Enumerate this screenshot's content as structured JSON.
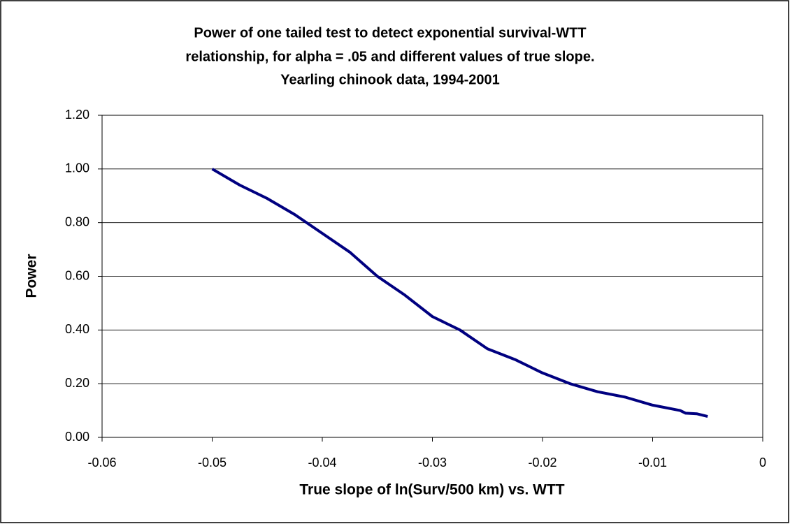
{
  "chart_data": {
    "type": "line",
    "title": [
      "Power of one tailed test to detect exponential survival-WTT",
      "relationship, for alpha = .05 and different values of true slope.",
      "Yearling chinook data, 1994-2001"
    ],
    "xlabel": "True slope of ln(Surv/500 km) vs. WTT",
    "ylabel": "Power",
    "x": [
      -0.05,
      -0.0475,
      -0.045,
      -0.0425,
      -0.04,
      -0.0375,
      -0.035,
      -0.0325,
      -0.03,
      -0.0275,
      -0.025,
      -0.0225,
      -0.02,
      -0.0175,
      -0.015,
      -0.0125,
      -0.01,
      -0.0075,
      -0.007,
      -0.006,
      -0.005
    ],
    "series": [
      {
        "color": "#000080",
        "values": [
          1.0,
          0.94,
          0.89,
          0.83,
          0.76,
          0.69,
          0.6,
          0.53,
          0.45,
          0.4,
          0.33,
          0.29,
          0.24,
          0.2,
          0.17,
          0.15,
          0.12,
          0.1,
          0.09,
          0.088,
          0.078
        ]
      }
    ],
    "xlim": [
      -0.06,
      0
    ],
    "xticks": [
      -0.06,
      -0.05,
      -0.04,
      -0.03,
      -0.02,
      -0.01,
      0
    ],
    "ylim": [
      0,
      1.2
    ],
    "yticks": [
      {
        "value": 0,
        "label": "0.00"
      },
      {
        "value": 0.2,
        "label": "0.20"
      },
      {
        "value": 0.4,
        "label": "0.40"
      },
      {
        "value": 0.6,
        "label": "0.60"
      },
      {
        "value": 0.8,
        "label": "0.80"
      },
      {
        "value": 1.0,
        "label": "1.00"
      },
      {
        "value": 1.2,
        "label": "1.20"
      }
    ],
    "grid": true
  }
}
